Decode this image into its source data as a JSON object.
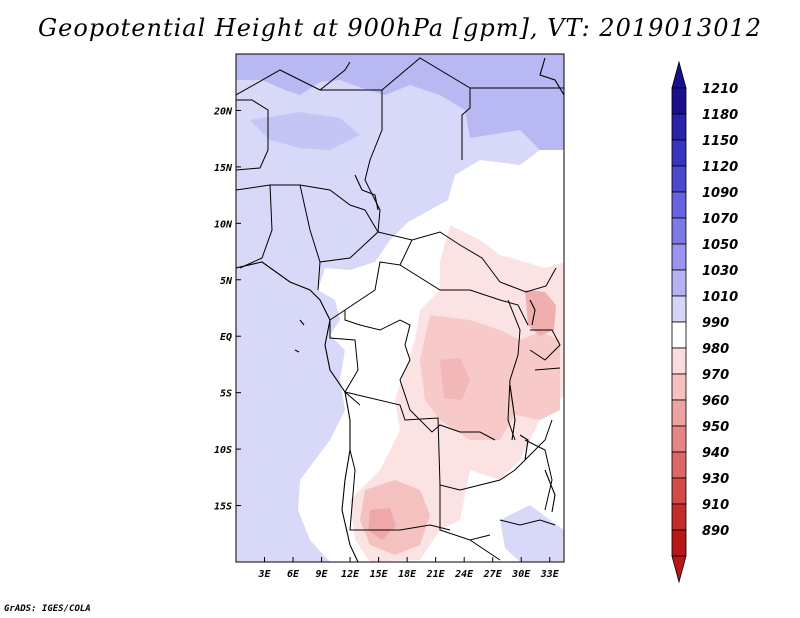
{
  "title": "Geopotential Height at 900hPa [gpm], VT: 2019013012",
  "credit": "GrADS: IGES/COLA",
  "map": {
    "lon_range": [
      0,
      34.5
    ],
    "lat_range": [
      -20,
      25
    ],
    "lon_ticks": [
      {
        "value": 3,
        "label": "3E"
      },
      {
        "value": 6,
        "label": "6E"
      },
      {
        "value": 9,
        "label": "9E"
      },
      {
        "value": 12,
        "label": "12E"
      },
      {
        "value": 15,
        "label": "15E"
      },
      {
        "value": 18,
        "label": "18E"
      },
      {
        "value": 21,
        "label": "21E"
      },
      {
        "value": 24,
        "label": "24E"
      },
      {
        "value": 27,
        "label": "27E"
      },
      {
        "value": 30,
        "label": "30E"
      },
      {
        "value": 33,
        "label": "33E"
      }
    ],
    "lat_ticks": [
      {
        "value": 20,
        "label": "20N"
      },
      {
        "value": 15,
        "label": "15N"
      },
      {
        "value": 10,
        "label": "10N"
      },
      {
        "value": 5,
        "label": "5N"
      },
      {
        "value": 0,
        "label": "EQ"
      },
      {
        "value": -5,
        "label": "5S"
      },
      {
        "value": -10,
        "label": "10S"
      },
      {
        "value": -15,
        "label": "15S"
      }
    ]
  },
  "colorbar": {
    "levels": [
      "1210",
      "1180",
      "1150",
      "1120",
      "1090",
      "1070",
      "1050",
      "1030",
      "1010",
      "990",
      "980",
      "970",
      "960",
      "950",
      "940",
      "930",
      "910",
      "890"
    ],
    "colors": [
      "#1a0f8c",
      "#2a22a8",
      "#3a35bd",
      "#4c49cf",
      "#6663dc",
      "#7d7ae6",
      "#9896ee",
      "#b4b3f3",
      "#d4d4f8",
      "#ffffff",
      "#fbdcdc",
      "#f6c0c0",
      "#eea3a3",
      "#e58585",
      "#db6767",
      "#d14a4a",
      "#c52c2c",
      "#b91717"
    ],
    "top_cap_color": "#1a0f8c",
    "bottom_cap_color": "#b91717"
  }
}
